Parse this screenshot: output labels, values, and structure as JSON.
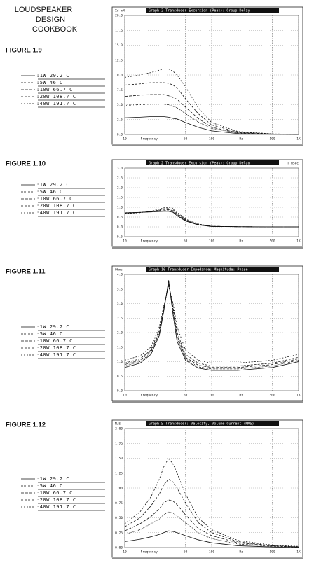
{
  "header": {
    "lines": [
      "LOUDSPEAKER",
      "DESIGN",
      "COOKBOOK"
    ]
  },
  "chart_data": [
    {
      "type": "line",
      "figure": "FIGURE 1.9",
      "title": "Graph 2   Transducer Excursion (Peak): Group Delay",
      "y_label": "Xd mM",
      "x_label": "Frequency",
      "x_unit": "Hz",
      "log_x": true,
      "grid": true,
      "xlim": [
        10,
        1000
      ],
      "ylim": [
        0,
        20
      ],
      "xticks": [
        10,
        50,
        100,
        500,
        {
          "value": 1000,
          "label": "1K"
        }
      ],
      "yticks": [
        {
          "value": 20,
          "label": "20.0"
        },
        17.5,
        {
          "value": 15,
          "label": "15.0"
        },
        12.5,
        {
          "value": 10,
          "label": "10.0"
        },
        7.5,
        {
          "value": 5,
          "label": "5.0"
        },
        2.5,
        {
          "value": 0,
          "label": "0.0"
        }
      ],
      "x": [
        10,
        15,
        20,
        25,
        28,
        32,
        36,
        40,
        50,
        70,
        100,
        200,
        500,
        1000
      ],
      "series": [
        {
          "name": ":1W 29.2 C",
          "color": "#111",
          "dash": "none",
          "values": [
            2.8,
            2.9,
            3,
            3,
            3,
            2.9,
            2.7,
            2.6,
            2,
            1.2,
            0.6,
            0.15,
            0.03,
            0.01
          ]
        },
        {
          "name": ":5W 46 C",
          "color": "#111",
          "dash": "1 1",
          "values": [
            4.9,
            5,
            5.1,
            5.1,
            5.1,
            5,
            4.7,
            4.5,
            3.5,
            2.1,
            1,
            0.25,
            0.05,
            0.01
          ]
        },
        {
          "name": ":10W 66.7 C",
          "color": "#111",
          "dash": "4 2",
          "values": [
            6.4,
            6.6,
            6.7,
            6.7,
            6.7,
            6.5,
            6.2,
            5.9,
            4.6,
            2.7,
            1.2,
            0.3,
            0.06,
            0.02
          ]
        },
        {
          "name": ":20W 108.7 C",
          "color": "#111",
          "dash": "3 2",
          "values": [
            8.3,
            8.5,
            8.7,
            8.7,
            8.7,
            8.6,
            8.3,
            7.8,
            6,
            3.5,
            1.6,
            0.4,
            0.08,
            0.02
          ]
        },
        {
          "name": ":40W 191.7 C",
          "color": "#111",
          "dash": "2 2",
          "values": [
            9.6,
            10,
            10.4,
            10.8,
            11,
            11,
            10.6,
            10,
            8,
            4.5,
            2,
            0.5,
            0.1,
            0.03
          ]
        }
      ]
    },
    {
      "type": "line",
      "figure": "FIGURE 1.10",
      "title": "Graph 2   Transducer Excursion (Peak): Group Delay",
      "y_label": "T mSec",
      "x_label": "Frequency",
      "x_unit": "Hz",
      "log_x": true,
      "grid": true,
      "xlim": [
        10,
        1000
      ],
      "ylim": [
        -0.5,
        3
      ],
      "xticks": [
        10,
        50,
        100,
        500,
        {
          "value": 1000,
          "label": "1K"
        }
      ],
      "yticks": [
        {
          "value": 3,
          "label": "3.0"
        },
        2.5,
        {
          "value": 2,
          "label": "2.0"
        },
        1.5,
        {
          "value": 1,
          "label": "1.0"
        },
        0.5,
        {
          "value": 0,
          "label": "0.0"
        },
        -0.5
      ],
      "x": [
        10,
        15,
        20,
        25,
        28,
        32,
        36,
        40,
        50,
        70,
        100,
        200,
        500,
        1000
      ],
      "series": [
        {
          "name": ":1W 29.2 C",
          "color": "#111",
          "dash": "none",
          "values": [
            0.72,
            0.74,
            0.76,
            0.78,
            0.79,
            0.79,
            0.74,
            0.57,
            0.3,
            0.1,
            0.02,
            0.01,
            0,
            0
          ]
        },
        {
          "name": ":5W 46 C",
          "color": "#111",
          "dash": "1 1",
          "values": [
            0.72,
            0.74,
            0.77,
            0.8,
            0.82,
            0.82,
            0.78,
            0.6,
            0.31,
            0.11,
            0.02,
            0.01,
            0,
            0
          ]
        },
        {
          "name": ":10W 66.7 C",
          "color": "#111",
          "dash": "4 2",
          "values": [
            0.7,
            0.74,
            0.78,
            0.83,
            0.86,
            0.88,
            0.82,
            0.63,
            0.33,
            0.12,
            0.03,
            0.01,
            0,
            0
          ]
        },
        {
          "name": ":20W 108.7 C",
          "color": "#111",
          "dash": "3 2",
          "values": [
            0.7,
            0.73,
            0.78,
            0.86,
            0.92,
            0.94,
            0.88,
            0.68,
            0.36,
            0.13,
            0.03,
            0.01,
            0,
            0
          ]
        },
        {
          "name": ":40W 191.7 C",
          "color": "#111",
          "dash": "2 2",
          "values": [
            0.68,
            0.72,
            0.8,
            0.9,
            0.97,
            1,
            0.95,
            0.75,
            0.4,
            0.15,
            0.03,
            0.01,
            0,
            0
          ]
        }
      ]
    },
    {
      "type": "line",
      "figure": "FIGURE 1.11",
      "title": "Graph 16   Transducer Impedance: Magnitude: Phase",
      "y_label": "Ohms",
      "x_label": "Frequency",
      "x_unit": "Hz",
      "log_x": true,
      "grid": true,
      "xlim": [
        10,
        1000
      ],
      "ylim": [
        0,
        4
      ],
      "xticks": [
        10,
        50,
        100,
        500,
        {
          "value": 1000,
          "label": "1K"
        }
      ],
      "yticks": [
        {
          "value": 4,
          "label": "4.0"
        },
        3.5,
        {
          "value": 3,
          "label": "3.0"
        },
        2.5,
        {
          "value": 2,
          "label": "2.0"
        },
        1.5,
        {
          "value": 1,
          "label": "1.0"
        },
        0.5,
        {
          "value": 0,
          "label": "0.0"
        }
      ],
      "x": [
        10,
        15,
        20,
        25,
        28,
        32,
        36,
        40,
        50,
        70,
        100,
        200,
        500,
        1000
      ],
      "series": [
        {
          "name": ":1W 29.2 C",
          "color": "#111",
          "dash": "none",
          "values": [
            0.8,
            0.95,
            1.25,
            1.9,
            2.7,
            3.8,
            2.6,
            1.7,
            1.05,
            0.78,
            0.7,
            0.7,
            0.8,
            1
          ]
        },
        {
          "name": ":5W 46 C",
          "color": "#111",
          "dash": "1 1",
          "values": [
            0.85,
            1,
            1.3,
            1.95,
            2.75,
            3.75,
            2.7,
            1.8,
            1.1,
            0.82,
            0.75,
            0.75,
            0.85,
            1.05
          ]
        },
        {
          "name": ":10W 66.7 C",
          "color": "#111",
          "dash": "4 2",
          "values": [
            0.9,
            1.05,
            1.35,
            2,
            2.8,
            3.7,
            2.8,
            1.9,
            1.15,
            0.88,
            0.8,
            0.8,
            0.9,
            1.1
          ]
        },
        {
          "name": ":20W 108.7 C",
          "color": "#111",
          "dash": "3 2",
          "values": [
            0.95,
            1.1,
            1.4,
            2.1,
            2.85,
            3.65,
            2.9,
            2,
            1.25,
            0.95,
            0.85,
            0.85,
            0.95,
            1.15
          ]
        },
        {
          "name": ":40W 191.7 C",
          "color": "#111",
          "dash": "2 2",
          "values": [
            1.05,
            1.2,
            1.5,
            2.2,
            2.9,
            3.6,
            3,
            2.2,
            1.4,
            1.05,
            0.95,
            0.95,
            1.05,
            1.25
          ]
        }
      ]
    },
    {
      "type": "line",
      "figure": "FIGURE 1.12",
      "title": "Graph 5   Transducer: Velocity, Volume Current (MMS)",
      "y_label": "M/S",
      "x_label": "Frequency",
      "x_unit": "Hz",
      "log_x": true,
      "grid": true,
      "xlim": [
        10,
        1000
      ],
      "ylim": [
        0,
        2
      ],
      "xticks": [
        10,
        50,
        100,
        500,
        {
          "value": 1000,
          "label": "1K"
        }
      ],
      "yticks": [
        {
          "value": 2,
          "label": "2.00"
        },
        1.75,
        {
          "value": 1.5,
          "label": "1.50"
        },
        1.25,
        {
          "value": 1,
          "label": "1.00"
        },
        0.75,
        {
          "value": 0.5,
          "label": "0.50"
        },
        0.25,
        {
          "value": 0,
          "label": "0.00"
        }
      ],
      "x": [
        10,
        15,
        20,
        25,
        28,
        32,
        36,
        40,
        50,
        70,
        100,
        200,
        500,
        1000
      ],
      "series": [
        {
          "name": ":1W 29.2 C",
          "color": "#111",
          "dash": "none",
          "values": [
            0.1,
            0.14,
            0.18,
            0.22,
            0.25,
            0.28,
            0.27,
            0.25,
            0.2,
            0.13,
            0.08,
            0.03,
            0.01,
            0
          ]
        },
        {
          "name": ":5W 46 C",
          "color": "#111",
          "dash": "1 1",
          "values": [
            0.22,
            0.3,
            0.4,
            0.48,
            0.55,
            0.6,
            0.58,
            0.53,
            0.42,
            0.25,
            0.15,
            0.06,
            0.02,
            0.01
          ]
        },
        {
          "name": ":10W 66.7 C",
          "color": "#111",
          "dash": "4 2",
          "values": [
            0.28,
            0.4,
            0.52,
            0.65,
            0.75,
            0.8,
            0.78,
            0.72,
            0.55,
            0.32,
            0.2,
            0.08,
            0.03,
            0.01
          ]
        },
        {
          "name": ":20W 108.7 C",
          "color": "#111",
          "dash": "3 2",
          "values": [
            0.35,
            0.5,
            0.7,
            0.9,
            1.05,
            1.15,
            1.1,
            1,
            0.75,
            0.42,
            0.25,
            0.1,
            0.03,
            0.01
          ]
        },
        {
          "name": ":40W 191.7 C",
          "color": "#111",
          "dash": "2 2",
          "values": [
            0.4,
            0.6,
            0.85,
            1.15,
            1.35,
            1.5,
            1.4,
            1.25,
            0.9,
            0.5,
            0.3,
            0.12,
            0.04,
            0.02
          ]
        }
      ]
    }
  ]
}
